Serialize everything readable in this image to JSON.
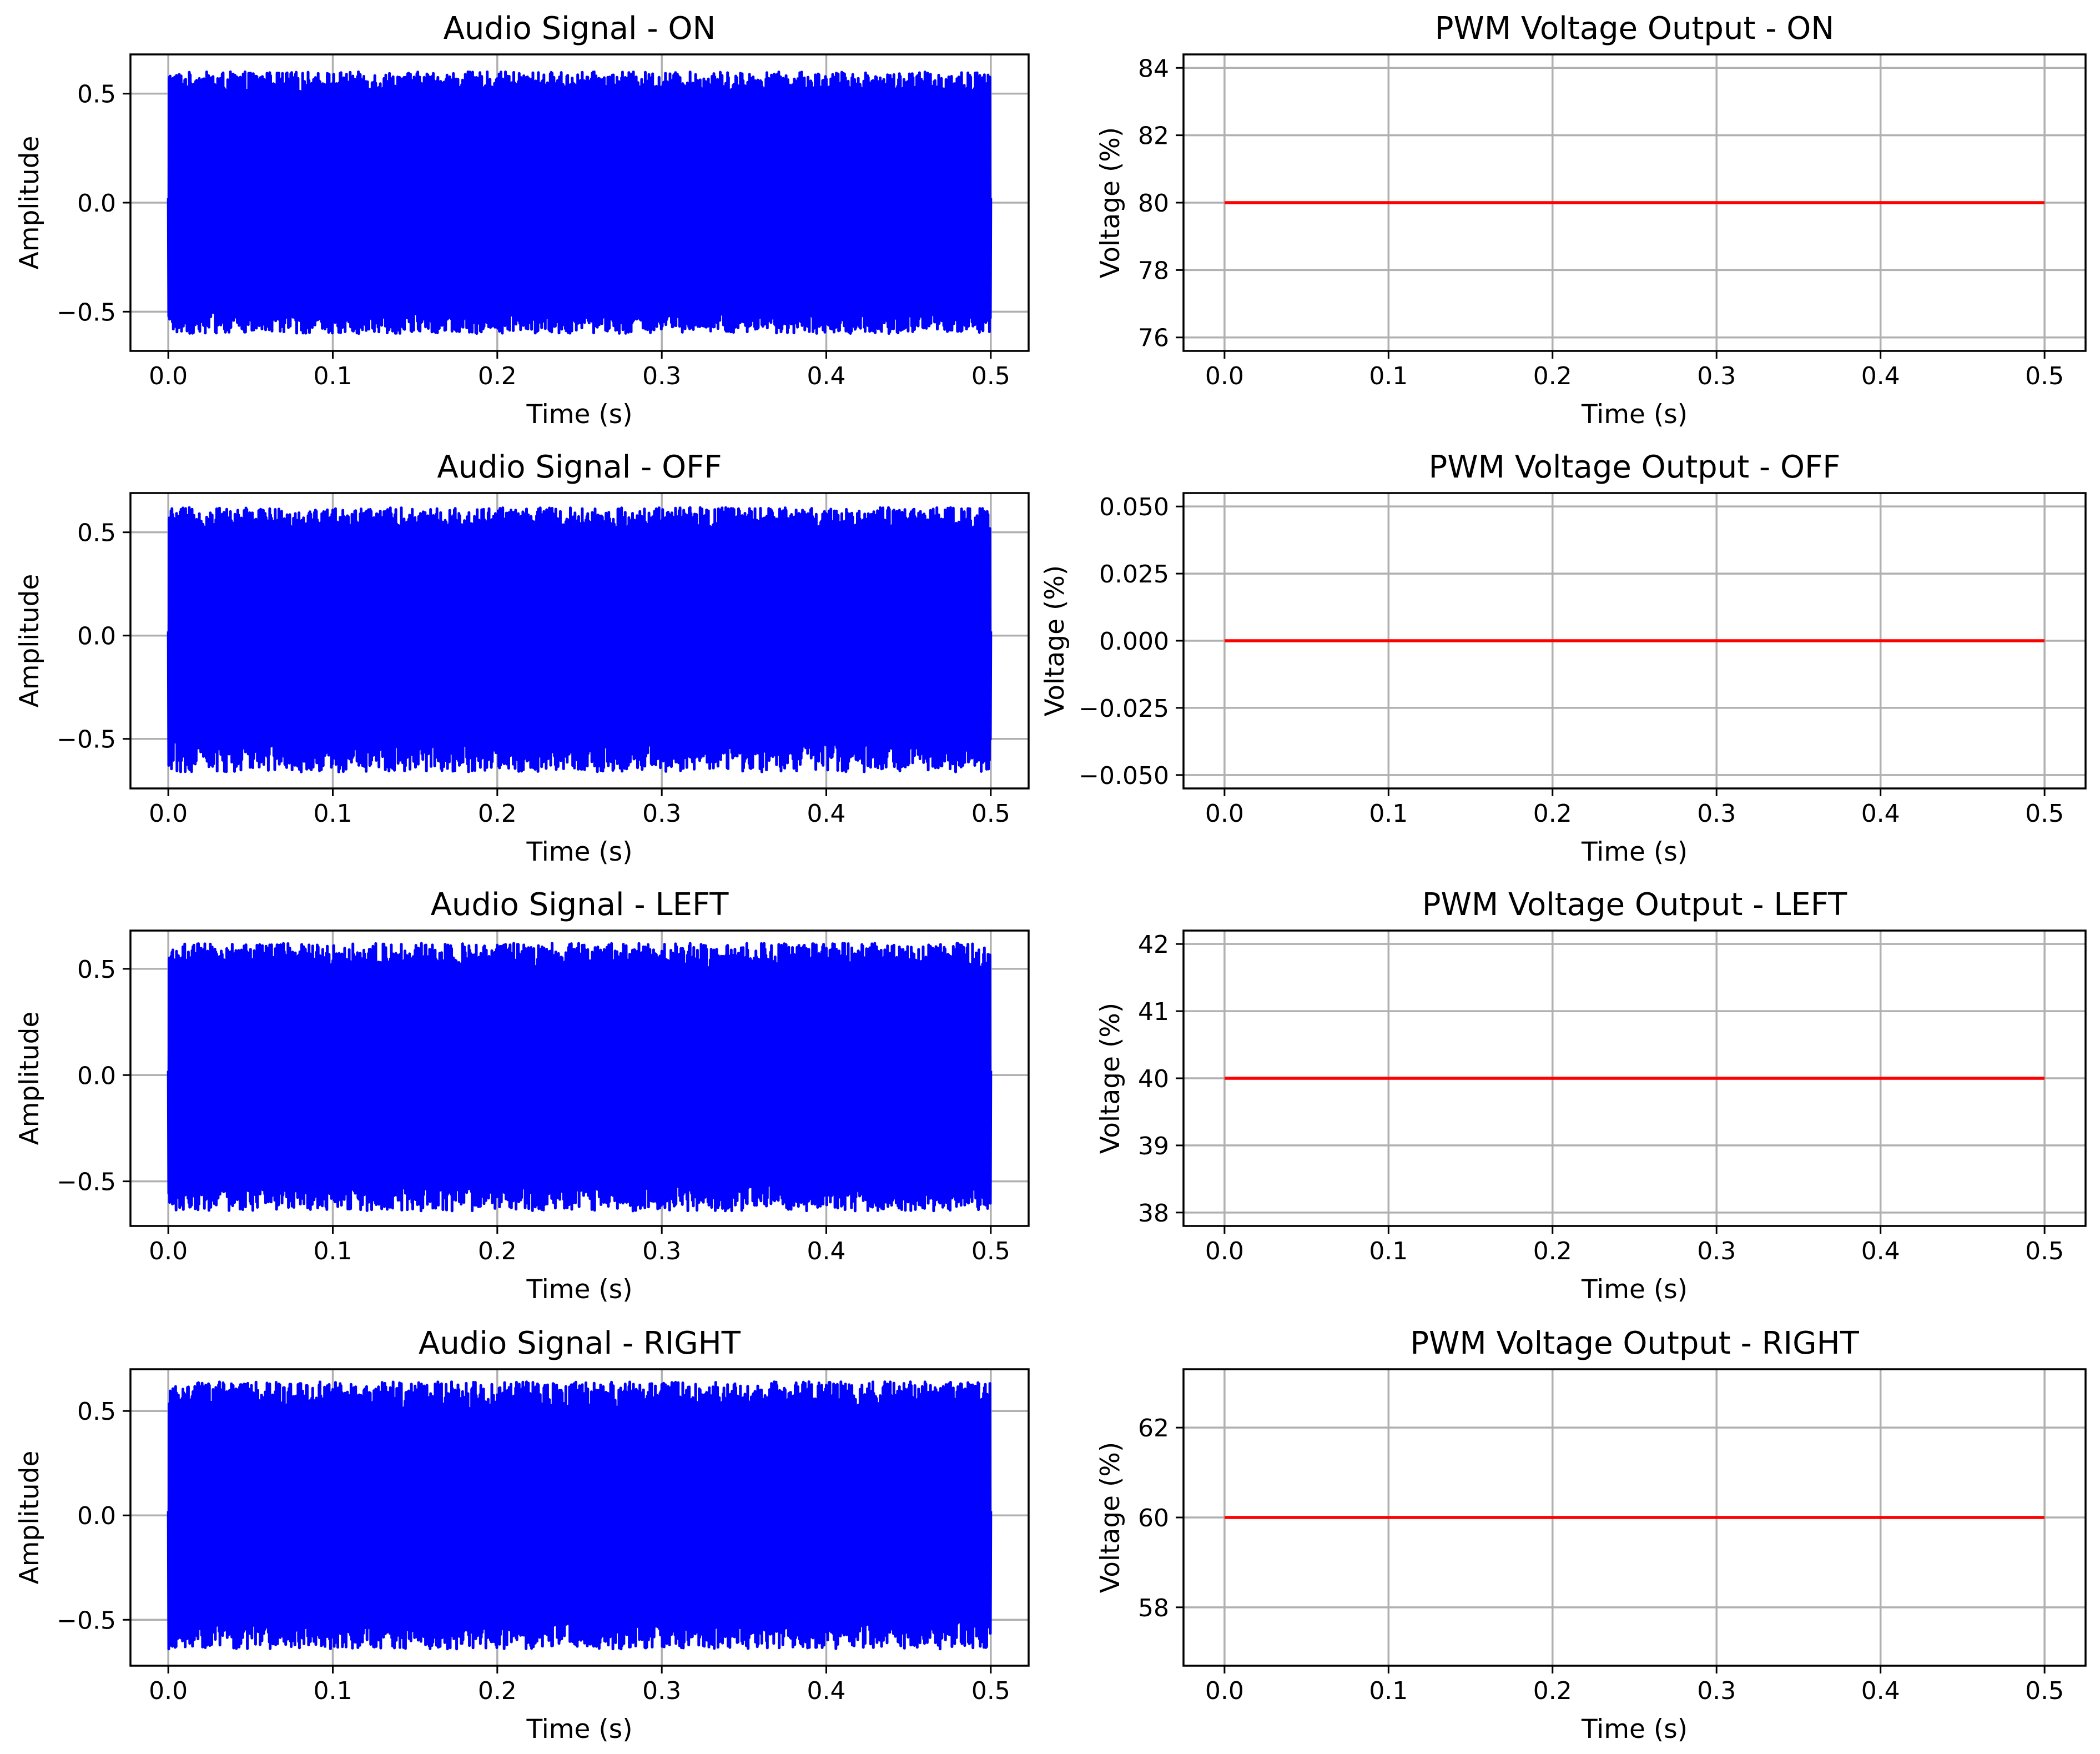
{
  "chart_data": [
    {
      "type": "line",
      "title": "Audio Signal - ON",
      "xlabel": "Time (s)",
      "ylabel": "Amplitude",
      "xlim": [
        -0.023,
        0.523
      ],
      "ylim": [
        -0.68,
        0.68
      ],
      "xticks": [
        "0.0",
        "0.1",
        "0.2",
        "0.3",
        "0.4",
        "0.5"
      ],
      "yticks": [
        "0.5",
        "0.0",
        "−0.5"
      ],
      "grid": true,
      "series": [
        {
          "color": "#0000ff",
          "kind": "audio-noise",
          "x_range": [
            0,
            0.5
          ],
          "amplitude_envelope": [
            -0.6,
            0.6
          ]
        }
      ]
    },
    {
      "type": "line",
      "title": "PWM Voltage Output - ON",
      "xlabel": "Time (s)",
      "ylabel": "Voltage (%)",
      "xlim": [
        -0.025,
        0.525
      ],
      "ylim": [
        75.6,
        84.4
      ],
      "xticks": [
        "0.0",
        "0.1",
        "0.2",
        "0.3",
        "0.4",
        "0.5"
      ],
      "yticks": [
        "84",
        "82",
        "80",
        "78",
        "76"
      ],
      "grid": true,
      "series": [
        {
          "color": "#ff0000",
          "x": [
            0,
            0.5
          ],
          "y": [
            80,
            80
          ]
        }
      ]
    },
    {
      "type": "line",
      "title": "Audio Signal - OFF",
      "xlabel": "Time (s)",
      "ylabel": "Amplitude",
      "xlim": [
        -0.023,
        0.523
      ],
      "ylim": [
        -0.74,
        0.69
      ],
      "xticks": [
        "0.0",
        "0.1",
        "0.2",
        "0.3",
        "0.4",
        "0.5"
      ],
      "yticks": [
        "0.5",
        "0.0",
        "−0.5"
      ],
      "grid": true,
      "series": [
        {
          "color": "#0000ff",
          "kind": "audio-noise",
          "x_range": [
            0,
            0.5
          ],
          "amplitude_envelope": [
            -0.66,
            0.62
          ]
        }
      ]
    },
    {
      "type": "line",
      "title": "PWM Voltage Output - OFF",
      "xlabel": "Time (s)",
      "ylabel": "Voltage (%)",
      "xlim": [
        -0.025,
        0.525
      ],
      "ylim": [
        -0.055,
        0.055
      ],
      "xticks": [
        "0.0",
        "0.1",
        "0.2",
        "0.3",
        "0.4",
        "0.5"
      ],
      "yticks": [
        "0.050",
        "0.025",
        "0.000",
        "−0.025",
        "−0.050"
      ],
      "grid": true,
      "series": [
        {
          "color": "#ff0000",
          "x": [
            0,
            0.5
          ],
          "y": [
            0,
            0
          ]
        }
      ]
    },
    {
      "type": "line",
      "title": "Audio Signal - LEFT",
      "xlabel": "Time (s)",
      "ylabel": "Amplitude",
      "xlim": [
        -0.023,
        0.523
      ],
      "ylim": [
        -0.71,
        0.68
      ],
      "xticks": [
        "0.0",
        "0.1",
        "0.2",
        "0.3",
        "0.4",
        "0.5"
      ],
      "yticks": [
        "0.5",
        "0.0",
        "−0.5"
      ],
      "grid": true,
      "series": [
        {
          "color": "#0000ff",
          "kind": "audio-noise",
          "x_range": [
            0,
            0.5
          ],
          "amplitude_envelope": [
            -0.64,
            0.62
          ]
        }
      ]
    },
    {
      "type": "line",
      "title": "PWM Voltage Output - LEFT",
      "xlabel": "Time (s)",
      "ylabel": "Voltage (%)",
      "xlim": [
        -0.025,
        0.525
      ],
      "ylim": [
        37.8,
        42.2
      ],
      "xticks": [
        "0.0",
        "0.1",
        "0.2",
        "0.3",
        "0.4",
        "0.5"
      ],
      "yticks": [
        "42",
        "41",
        "40",
        "39",
        "38"
      ],
      "grid": true,
      "series": [
        {
          "color": "#ff0000",
          "x": [
            0,
            0.5
          ],
          "y": [
            40,
            40
          ]
        }
      ]
    },
    {
      "type": "line",
      "title": "Audio Signal - RIGHT",
      "xlabel": "Time (s)",
      "ylabel": "Amplitude",
      "xlim": [
        -0.023,
        0.523
      ],
      "ylim": [
        -0.72,
        0.7
      ],
      "xticks": [
        "0.0",
        "0.1",
        "0.2",
        "0.3",
        "0.4",
        "0.5"
      ],
      "yticks": [
        "0.5",
        "0.0",
        "−0.5"
      ],
      "grid": true,
      "series": [
        {
          "color": "#0000ff",
          "kind": "audio-noise",
          "x_range": [
            0,
            0.5
          ],
          "amplitude_envelope": [
            -0.64,
            0.64
          ]
        }
      ]
    },
    {
      "type": "line",
      "title": "PWM Voltage Output - RIGHT",
      "xlabel": "Time (s)",
      "ylabel": "Voltage (%)",
      "xlim": [
        -0.025,
        0.525
      ],
      "ylim": [
        56.7,
        63.3
      ],
      "xticks": [
        "0.0",
        "0.1",
        "0.2",
        "0.3",
        "0.4",
        "0.5"
      ],
      "yticks": [
        "62",
        "60",
        "58"
      ],
      "grid": true,
      "series": [
        {
          "color": "#ff0000",
          "x": [
            0,
            0.5
          ],
          "y": [
            60,
            60
          ]
        }
      ]
    }
  ]
}
